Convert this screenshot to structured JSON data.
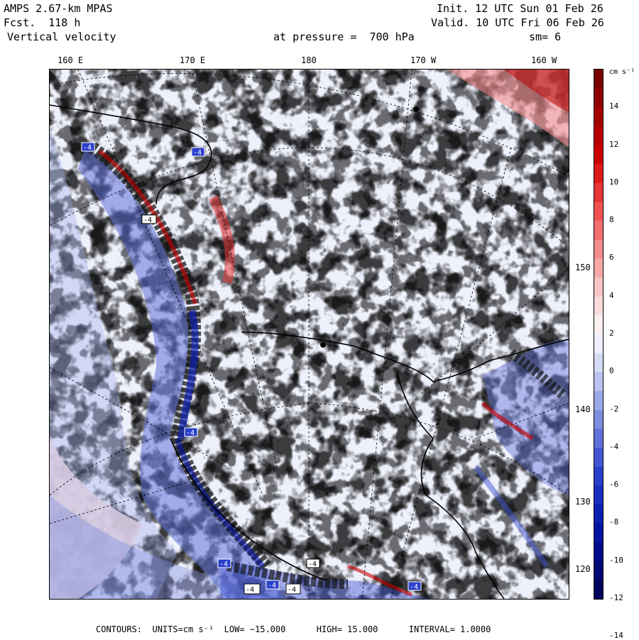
{
  "header": {
    "model": "AMPS 2.67-km MPAS",
    "fcst": "Fcst.  118 h",
    "field": "Vertical velocity",
    "init": "Init. 12 UTC Sun 01 Feb 26",
    "valid": "Valid. 10 UTC Fri 06 Feb 26",
    "pressure": "at pressure =  700 hPa",
    "smoothing": "sm= 6"
  },
  "longitude_labels": [
    "160 E",
    "170 E",
    "180",
    "170 W",
    "160 W"
  ],
  "latitude_labels": [
    "150 W",
    "140 W",
    "130 W",
    "120 W"
  ],
  "map_marks": [
    "-4",
    "-4",
    "-4",
    "-4",
    "-4",
    "-4",
    "-4",
    "-4",
    "-4",
    "-4"
  ],
  "colorbar": {
    "units": "cm s⁻¹",
    "tick_labels": [
      "14",
      "12",
      "10",
      "8",
      "6",
      "4",
      "2",
      "0",
      "-2",
      "-4",
      "-6",
      "-8",
      "-10",
      "-12",
      "-14"
    ],
    "colors": [
      "#7a0000",
      "#8e0000",
      "#a30000",
      "#b80000",
      "#cc0000",
      "#dd1a1a",
      "#e83535",
      "#f05252",
      "#f26f6f",
      "#f48c8c",
      "#f6a8a8",
      "#f8c4c4",
      "#fadcdc",
      "#fdf0f0",
      "#eef0fb",
      "#d7dcf5",
      "#bac3ef",
      "#9ca9e8",
      "#7f8ee0",
      "#6172d9",
      "#4457d2",
      "#2a3fcb",
      "#1a2ec2",
      "#0d1fb3",
      "#0514a0",
      "#020c8a",
      "#010874",
      "#00055f"
    ]
  },
  "footer": {
    "contours_label": "CONTOURS:",
    "units": "UNITS=cm s⁻¹",
    "low": "LOW= −15.000",
    "high": "HIGH=  15.000",
    "interval": "INTERVAL=   1.0000"
  }
}
